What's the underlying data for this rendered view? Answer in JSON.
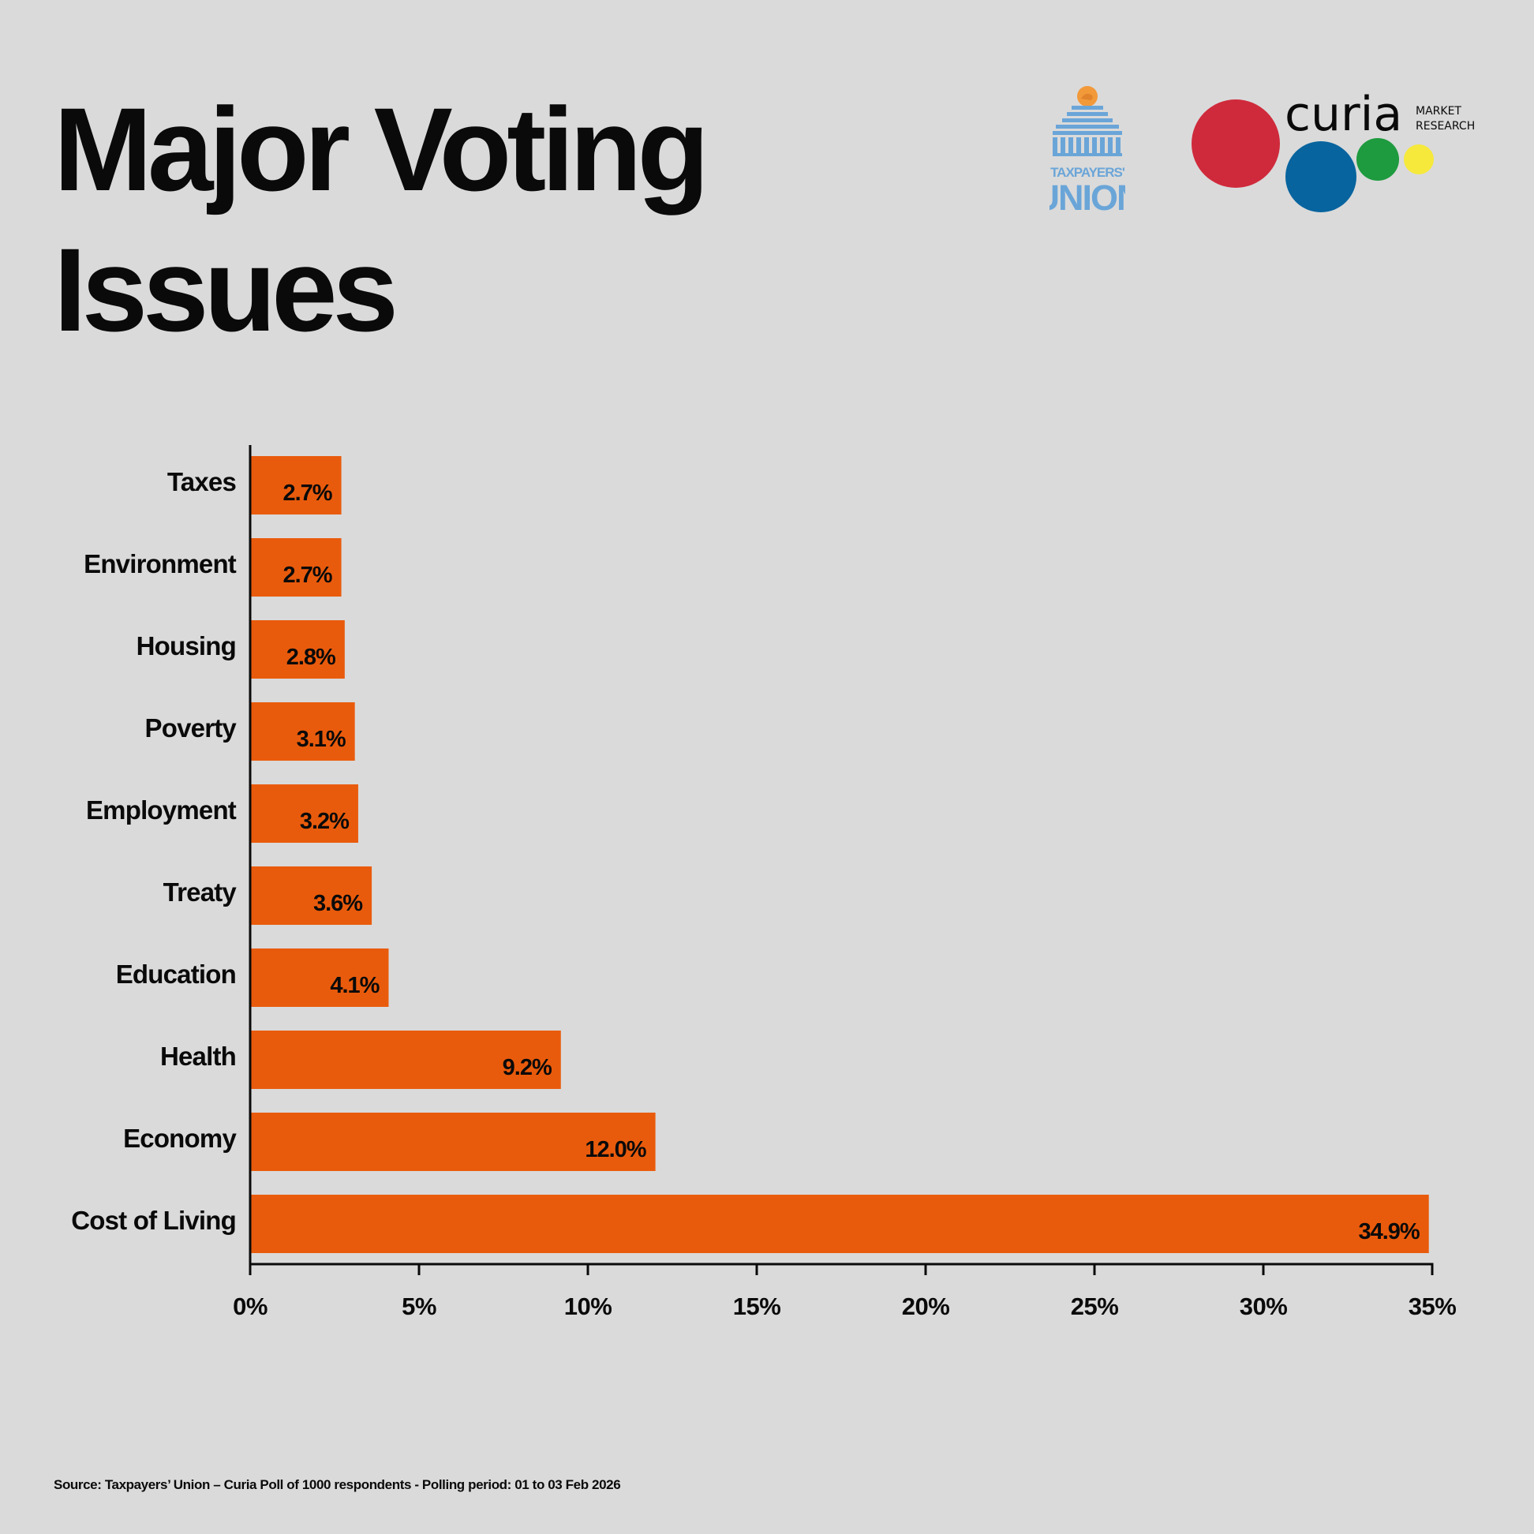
{
  "title_line1": "Major Voting",
  "title_line2": "Issues",
  "logos": {
    "taxpayers_union": {
      "line1": "TAXPAYERS'",
      "line2": "UNION",
      "color": "#6aa5d8",
      "accent": "#f2993a"
    },
    "curia": {
      "word": "curia",
      "tag1": "MARKET",
      "tag2": "RESEARCH",
      "dot_colors": [
        "#cf2a3b",
        "#07649e",
        "#1e9a3f",
        "#f6e93b"
      ]
    }
  },
  "chart_data": {
    "type": "bar",
    "orientation": "horizontal",
    "categories": [
      "Taxes",
      "Environment",
      "Housing",
      "Poverty",
      "Employment",
      "Treaty",
      "Education",
      "Health",
      "Economy",
      "Cost of Living"
    ],
    "values": [
      2.7,
      2.7,
      2.8,
      3.1,
      3.2,
      3.6,
      4.1,
      9.2,
      12.0,
      34.9
    ],
    "value_labels": [
      "2.7%",
      "2.7%",
      "2.8%",
      "3.1%",
      "3.2%",
      "3.6%",
      "4.1%",
      "9.2%",
      "12.0%",
      "34.9%"
    ],
    "xlim": [
      0,
      35
    ],
    "xticks": [
      0,
      5,
      10,
      15,
      20,
      25,
      30,
      35
    ],
    "xtick_labels": [
      "0%",
      "5%",
      "10%",
      "15%",
      "20%",
      "25%",
      "30%",
      "35%"
    ],
    "bar_color": "#e95b0c",
    "grid": false,
    "legend": "none"
  },
  "source": "Source: Taxpayers’ Union – Curia Poll of 1000 respondents - Polling period: 01 to 03 Feb 2026"
}
